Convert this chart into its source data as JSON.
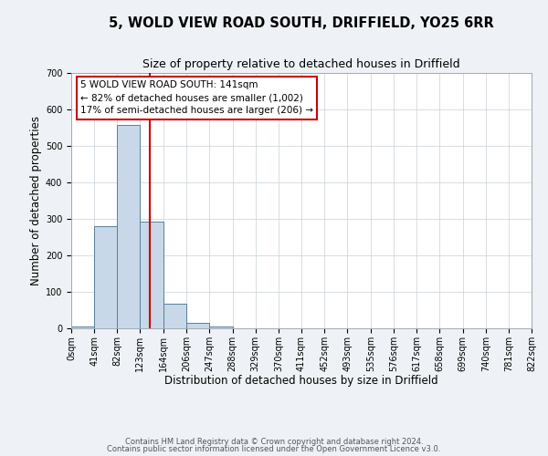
{
  "title": "5, WOLD VIEW ROAD SOUTH, DRIFFIELD, YO25 6RR",
  "subtitle": "Size of property relative to detached houses in Driffield",
  "xlabel": "Distribution of detached houses by size in Driffield",
  "ylabel": "Number of detached properties",
  "bar_edges": [
    0,
    41,
    82,
    123,
    164,
    206,
    247,
    288,
    329,
    370,
    411,
    452,
    493,
    535,
    576,
    617,
    658,
    699,
    740,
    781,
    822
  ],
  "bar_heights": [
    5,
    280,
    558,
    292,
    68,
    15,
    5,
    0,
    0,
    0,
    0,
    0,
    0,
    0,
    0,
    0,
    0,
    0,
    0,
    0
  ],
  "bar_color": "#c8d8e8",
  "bar_edge_color": "#5580a0",
  "vline_x": 141,
  "vline_color": "#cc0000",
  "ylim": [
    0,
    700
  ],
  "xlim": [
    0,
    822
  ],
  "tick_positions": [
    0,
    41,
    82,
    123,
    164,
    206,
    247,
    288,
    329,
    370,
    411,
    452,
    493,
    535,
    576,
    617,
    658,
    699,
    740,
    781,
    822
  ],
  "tick_labels": [
    "0sqm",
    "41sqm",
    "82sqm",
    "123sqm",
    "164sqm",
    "206sqm",
    "247sqm",
    "288sqm",
    "329sqm",
    "370sqm",
    "411sqm",
    "452sqm",
    "493sqm",
    "535sqm",
    "576sqm",
    "617sqm",
    "658sqm",
    "699sqm",
    "740sqm",
    "781sqm",
    "822sqm"
  ],
  "annotation_box_text_line1": "5 WOLD VIEW ROAD SOUTH: 141sqm",
  "annotation_box_text_line2": "← 82% of detached houses are smaller (1,002)",
  "annotation_box_text_line3": "17% of semi-detached houses are larger (206) →",
  "footer_line1": "Contains HM Land Registry data © Crown copyright and database right 2024.",
  "footer_line2": "Contains public sector information licensed under the Open Government Licence v3.0.",
  "background_color": "#eef2f6",
  "plot_bg_color": "#ffffff",
  "grid_color": "#c8d0d8",
  "title_fontsize": 10.5,
  "subtitle_fontsize": 9,
  "axis_label_fontsize": 8.5,
  "tick_fontsize": 7,
  "footer_fontsize": 6,
  "annot_fontsize": 7.5
}
